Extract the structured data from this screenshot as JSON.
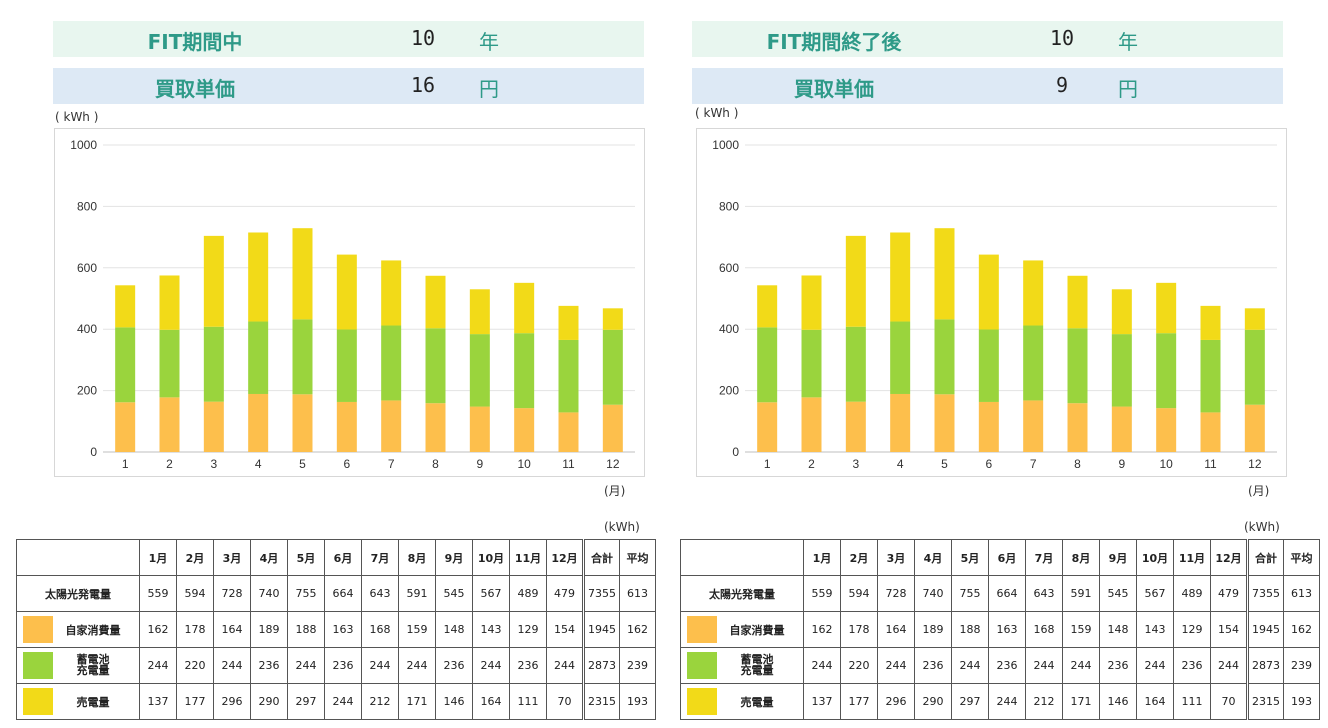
{
  "colors": {
    "self": "#fdbf4c",
    "battery": "#9ad43d",
    "sell": "#f2da18",
    "label_teal": "#2e9a88"
  },
  "panels": [
    {
      "header1": {
        "label": "FIT期間中",
        "value": "10",
        "unit": "年"
      },
      "header2": {
        "label": "買取単価",
        "value": "16",
        "unit": "円"
      },
      "kwh_label": "( kWh )",
      "month_unit": "(月)",
      "table_unit": "(kWh)",
      "table": {
        "headers": [
          "",
          "1月",
          "2月",
          "3月",
          "4月",
          "5月",
          "6月",
          "7月",
          "8月",
          "9月",
          "10月",
          "11月",
          "12月",
          "合計",
          "平均"
        ],
        "rows": [
          {
            "name": "太陽光発電量",
            "values": [
              "559",
              "594",
              "728",
              "740",
              "755",
              "664",
              "643",
              "591",
              "545",
              "567",
              "489",
              "479",
              "7355",
              "613"
            ]
          },
          {
            "name": "自家消費量",
            "values": [
              "162",
              "178",
              "164",
              "189",
              "188",
              "163",
              "168",
              "159",
              "148",
              "143",
              "129",
              "154",
              "1945",
              "162"
            ]
          },
          {
            "name": "蓄電池\n充電量",
            "values": [
              "244",
              "220",
              "244",
              "236",
              "244",
              "236",
              "244",
              "244",
              "236",
              "244",
              "236",
              "244",
              "2873",
              "239"
            ]
          },
          {
            "name": "売電量",
            "values": [
              "137",
              "177",
              "296",
              "290",
              "297",
              "244",
              "212",
              "171",
              "146",
              "164",
              "111",
              "70",
              "2315",
              "193"
            ]
          }
        ]
      }
    },
    {
      "header1": {
        "label": "FIT期間終了後",
        "value": "10",
        "unit": "年"
      },
      "header2": {
        "label": "買取単価",
        "value": "9",
        "unit": "円"
      },
      "kwh_label": "( kWh )",
      "month_unit": "(月)",
      "table_unit": "(kWh)",
      "table": {
        "headers": [
          "",
          "1月",
          "2月",
          "3月",
          "4月",
          "5月",
          "6月",
          "7月",
          "8月",
          "9月",
          "10月",
          "11月",
          "12月",
          "合計",
          "平均"
        ],
        "rows": [
          {
            "name": "太陽光発電量",
            "values": [
              "559",
              "594",
              "728",
              "740",
              "755",
              "664",
              "643",
              "591",
              "545",
              "567",
              "489",
              "479",
              "7355",
              "613"
            ]
          },
          {
            "name": "自家消費量",
            "values": [
              "162",
              "178",
              "164",
              "189",
              "188",
              "163",
              "168",
              "159",
              "148",
              "143",
              "129",
              "154",
              "1945",
              "162"
            ]
          },
          {
            "name": "蓄電池\n充電量",
            "values": [
              "244",
              "220",
              "244",
              "236",
              "244",
              "236",
              "244",
              "244",
              "236",
              "244",
              "236",
              "244",
              "2873",
              "239"
            ]
          },
          {
            "name": "売電量",
            "values": [
              "137",
              "177",
              "296",
              "290",
              "297",
              "244",
              "212",
              "171",
              "146",
              "164",
              "111",
              "70",
              "2315",
              "193"
            ]
          }
        ]
      }
    }
  ],
  "chart_data": [
    {
      "type": "bar",
      "stacked": true,
      "categories": [
        "1",
        "2",
        "3",
        "4",
        "5",
        "6",
        "7",
        "8",
        "9",
        "10",
        "11",
        "12"
      ],
      "ylim": [
        0,
        1000
      ],
      "yticks": [
        0,
        200,
        400,
        600,
        800,
        1000
      ],
      "grid": true,
      "series": [
        {
          "color": "#fdbf4c",
          "values": [
            162,
            178,
            164,
            189,
            188,
            163,
            168,
            159,
            148,
            143,
            129,
            154
          ]
        },
        {
          "color": "#9ad43d",
          "values": [
            244,
            220,
            244,
            236,
            244,
            236,
            244,
            244,
            236,
            244,
            236,
            244
          ]
        },
        {
          "color": "#f2da18",
          "values": [
            137,
            177,
            296,
            290,
            297,
            244,
            212,
            171,
            146,
            164,
            111,
            70
          ]
        }
      ]
    },
    {
      "type": "bar",
      "stacked": true,
      "categories": [
        "1",
        "2",
        "3",
        "4",
        "5",
        "6",
        "7",
        "8",
        "9",
        "10",
        "11",
        "12"
      ],
      "ylim": [
        0,
        1000
      ],
      "yticks": [
        0,
        200,
        400,
        600,
        800,
        1000
      ],
      "grid": true,
      "series": [
        {
          "color": "#fdbf4c",
          "values": [
            162,
            178,
            164,
            189,
            188,
            163,
            168,
            159,
            148,
            143,
            129,
            154
          ]
        },
        {
          "color": "#9ad43d",
          "values": [
            244,
            220,
            244,
            236,
            244,
            236,
            244,
            244,
            236,
            244,
            236,
            244
          ]
        },
        {
          "color": "#f2da18",
          "values": [
            137,
            177,
            296,
            290,
            297,
            244,
            212,
            171,
            146,
            164,
            111,
            70
          ]
        }
      ]
    }
  ]
}
